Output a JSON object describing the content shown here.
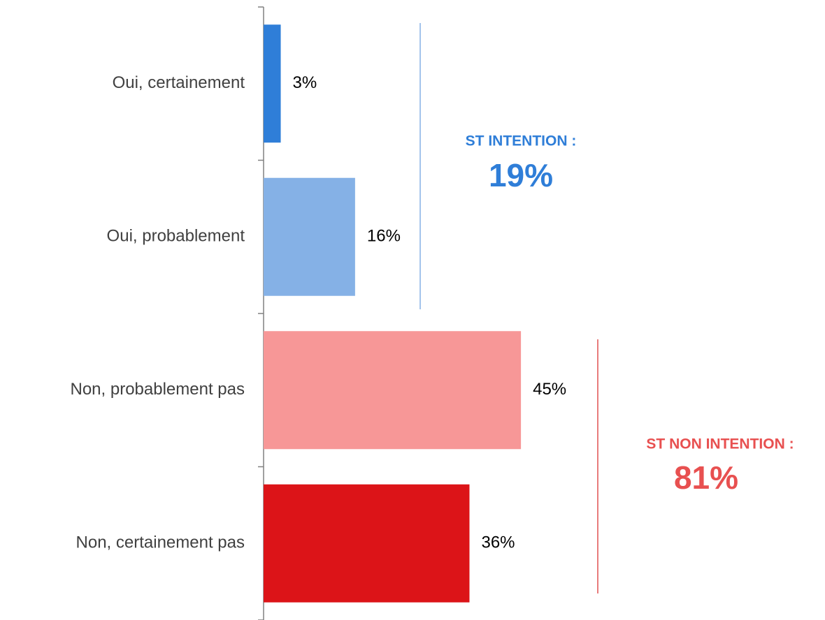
{
  "chart_data": {
    "type": "bar",
    "orientation": "horizontal",
    "categories": [
      "Oui, certainement",
      "Oui, probablement",
      "Non, probablement pas",
      "Non, certainement pas"
    ],
    "values": [
      3,
      16,
      45,
      36
    ],
    "value_labels": [
      "3%",
      "16%",
      "45%",
      "36%"
    ],
    "colors": [
      "#2f7ed8",
      "#85b1e6",
      "#f79797",
      "#dc1418"
    ],
    "annotations": [
      {
        "label": "ST INTENTION :",
        "value": "19%",
        "color": "#2f7ed8",
        "line_color": "#85b1e6"
      },
      {
        "label": "ST NON INTENTION :",
        "value": "81%",
        "color": "#e85050",
        "line_color": "#e05050"
      }
    ]
  }
}
